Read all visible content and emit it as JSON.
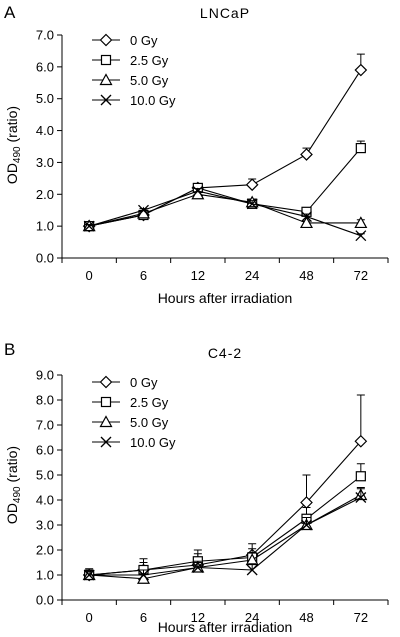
{
  "chart_data": [
    {
      "type": "line",
      "panel_letter": "A",
      "title": "LNCaP",
      "xlabel": "Hours after irradiation",
      "ylabel": {
        "main": "OD",
        "sub": "490",
        "suffix": " (ratio)"
      },
      "categories": [
        "0",
        "6",
        "12",
        "24",
        "48",
        "72"
      ],
      "ylim": [
        0,
        7
      ],
      "yticks": [
        "0.0",
        "1.0",
        "2.0",
        "3.0",
        "4.0",
        "5.0",
        "6.0",
        "7.0"
      ],
      "legend_position": "top-left",
      "series": [
        {
          "name": "0 Gy",
          "marker": "diamond",
          "values": [
            1.0,
            1.35,
            2.2,
            2.3,
            3.25,
            5.9
          ],
          "err": [
            0.06,
            0.06,
            0.08,
            0.18,
            0.2,
            0.5
          ]
        },
        {
          "name": "2.5 Gy",
          "marker": "square",
          "values": [
            1.0,
            1.35,
            2.2,
            1.7,
            1.45,
            3.45
          ],
          "err": [
            0.05,
            0.05,
            0.1,
            0.1,
            0.08,
            0.22
          ]
        },
        {
          "name": "5.0 Gy",
          "marker": "triangle",
          "values": [
            1.0,
            1.4,
            2.0,
            1.75,
            1.1,
            1.1
          ],
          "err": [
            0.05,
            0.05,
            0.08,
            0.1,
            0.06,
            0.1
          ]
        },
        {
          "name": "10.0 Gy",
          "marker": "x",
          "values": [
            1.0,
            1.5,
            2.1,
            1.7,
            1.3,
            0.7
          ],
          "err": [
            0.05,
            0.05,
            0.08,
            0.1,
            0.08,
            0.06
          ]
        }
      ]
    },
    {
      "type": "line",
      "panel_letter": "B",
      "title": "C4-2",
      "xlabel": "Hours after irradiation",
      "ylabel": {
        "main": "OD",
        "sub": "490",
        "suffix": " (ratio)"
      },
      "categories": [
        "0",
        "6",
        "12",
        "24",
        "48",
        "72"
      ],
      "ylim": [
        0,
        9
      ],
      "yticks": [
        "0.0",
        "1.0",
        "2.0",
        "3.0",
        "4.0",
        "5.0",
        "6.0",
        "7.0",
        "8.0",
        "9.0"
      ],
      "legend_position": "top-left",
      "series": [
        {
          "name": "0 Gy",
          "marker": "diamond",
          "values": [
            1.0,
            1.2,
            1.4,
            1.8,
            3.9,
            6.35
          ],
          "err": [
            0.25,
            0.45,
            0.6,
            0.45,
            1.1,
            1.85
          ]
        },
        {
          "name": "2.5 Gy",
          "marker": "square",
          "values": [
            1.0,
            1.2,
            1.55,
            1.7,
            3.25,
            4.95
          ],
          "err": [
            0.2,
            0.3,
            0.3,
            0.35,
            0.45,
            0.5
          ]
        },
        {
          "name": "5.0 Gy",
          "marker": "triangle",
          "values": [
            1.0,
            0.85,
            1.3,
            1.6,
            3.0,
            4.2
          ],
          "err": [
            0.15,
            0.2,
            0.25,
            0.3,
            0.3,
            0.3
          ]
        },
        {
          "name": "10.0 Gy",
          "marker": "x",
          "values": [
            1.0,
            1.0,
            1.3,
            1.2,
            3.0,
            4.1
          ],
          "err": [
            0.15,
            0.2,
            0.2,
            0.25,
            0.3,
            0.35
          ]
        }
      ]
    }
  ]
}
